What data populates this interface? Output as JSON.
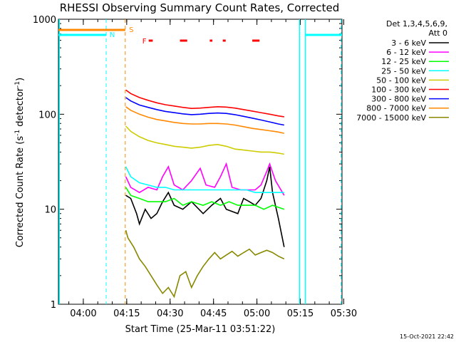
{
  "chart_data": {
    "type": "line",
    "title": "RHESSI Observing Summary Count Rates, Corrected",
    "xlabel": "Start Time (25-Mar-11 03:51:22)",
    "ylabel_main": "Corrected Count Rate (s",
    "ylabel_sup1": "-1",
    "ylabel_mid": " detector",
    "ylabel_sup2": "-1",
    "ylabel_end": ")",
    "ylog": true,
    "ylim": [
      1,
      1000
    ],
    "xlim_min": [
      0,
      98
    ],
    "x_unit": "minutes since 03:51:22",
    "x_ticks": [
      {
        "label": "04:00",
        "min": 8.6
      },
      {
        "label": "04:15",
        "min": 23.6
      },
      {
        "label": "04:30",
        "min": 38.6
      },
      {
        "label": "04:45",
        "min": 53.6
      },
      {
        "label": "05:00",
        "min": 68.6
      },
      {
        "label": "05:15",
        "min": 83.6
      },
      {
        "label": "05:30",
        "min": 98.6
      }
    ],
    "y_ticks": [
      {
        "label": "1",
        "v": 1
      },
      {
        "label": "10",
        "v": 10
      },
      {
        "label": "100",
        "v": 100
      },
      {
        "label": "1000",
        "v": 1000
      }
    ],
    "legend_header": [
      "Det 1,3,4,5,6,9,",
      "Att 0"
    ],
    "legend_position": "top-right",
    "series": [
      {
        "name": "3 - 6 keV",
        "color": "#000000",
        "values": [
          [
            23.3,
            14
          ],
          [
            25,
            13
          ],
          [
            27,
            9
          ],
          [
            28,
            7
          ],
          [
            30,
            10
          ],
          [
            32,
            8
          ],
          [
            34,
            9
          ],
          [
            36,
            12
          ],
          [
            38,
            15
          ],
          [
            40,
            11
          ],
          [
            43,
            10
          ],
          [
            46,
            12
          ],
          [
            50,
            9
          ],
          [
            53,
            11
          ],
          [
            56,
            13
          ],
          [
            58,
            10
          ],
          [
            62,
            9
          ],
          [
            64,
            13
          ],
          [
            66,
            12
          ],
          [
            68,
            11
          ],
          [
            70,
            13
          ],
          [
            72,
            20
          ],
          [
            73,
            28
          ],
          [
            74,
            15
          ],
          [
            76,
            8
          ],
          [
            78,
            4
          ]
        ]
      },
      {
        "name": "6 - 12 keV",
        "color": "#ff00ff",
        "values": [
          [
            23.3,
            22
          ],
          [
            25,
            17
          ],
          [
            28,
            15
          ],
          [
            31,
            17
          ],
          [
            34,
            16
          ],
          [
            36,
            22
          ],
          [
            38,
            28
          ],
          [
            40,
            18
          ],
          [
            43,
            16
          ],
          [
            46,
            20
          ],
          [
            49,
            27
          ],
          [
            51,
            18
          ],
          [
            54,
            17
          ],
          [
            56,
            22
          ],
          [
            58,
            30
          ],
          [
            60,
            17
          ],
          [
            63,
            16
          ],
          [
            66,
            16
          ],
          [
            68,
            16
          ],
          [
            70,
            18
          ],
          [
            72,
            25
          ],
          [
            73,
            30
          ],
          [
            75,
            20
          ],
          [
            78,
            14
          ]
        ]
      },
      {
        "name": "12 - 25 keV",
        "color": "#00ff00",
        "values": [
          [
            23.3,
            17
          ],
          [
            25,
            14
          ],
          [
            28,
            13
          ],
          [
            31,
            12
          ],
          [
            34,
            12
          ],
          [
            37,
            12
          ],
          [
            40,
            13
          ],
          [
            43,
            11
          ],
          [
            46,
            12
          ],
          [
            50,
            11
          ],
          [
            53,
            12
          ],
          [
            56,
            11
          ],
          [
            59,
            12
          ],
          [
            62,
            11
          ],
          [
            65,
            11
          ],
          [
            68,
            11
          ],
          [
            71,
            10
          ],
          [
            74,
            11
          ],
          [
            78,
            10
          ]
        ]
      },
      {
        "name": "25 - 50 keV",
        "color": "#00ffff",
        "values": [
          [
            23.3,
            28
          ],
          [
            25,
            22
          ],
          [
            28,
            19
          ],
          [
            31,
            18
          ],
          [
            34,
            17
          ],
          [
            37,
            17
          ],
          [
            40,
            16
          ],
          [
            43,
            16
          ],
          [
            46,
            16
          ],
          [
            50,
            16
          ],
          [
            53,
            16
          ],
          [
            56,
            16
          ],
          [
            59,
            16
          ],
          [
            62,
            16
          ],
          [
            65,
            16
          ],
          [
            68,
            15
          ],
          [
            71,
            15
          ],
          [
            74,
            15
          ],
          [
            78,
            15
          ]
        ]
      },
      {
        "name": "50 - 100 keV",
        "color": "#cccc00",
        "values": [
          [
            23.3,
            75
          ],
          [
            25,
            66
          ],
          [
            28,
            58
          ],
          [
            31,
            53
          ],
          [
            34,
            50
          ],
          [
            37,
            48
          ],
          [
            40,
            46
          ],
          [
            43,
            45
          ],
          [
            46,
            44
          ],
          [
            49,
            45
          ],
          [
            52,
            47
          ],
          [
            55,
            48
          ],
          [
            58,
            46
          ],
          [
            61,
            43
          ],
          [
            64,
            42
          ],
          [
            67,
            41
          ],
          [
            70,
            40
          ],
          [
            73,
            40
          ],
          [
            76,
            39
          ],
          [
            78,
            38
          ]
        ]
      },
      {
        "name": "100 - 300 keV",
        "color": "#ff0000",
        "values": [
          [
            23.3,
            180
          ],
          [
            25,
            165
          ],
          [
            28,
            150
          ],
          [
            31,
            140
          ],
          [
            34,
            132
          ],
          [
            37,
            126
          ],
          [
            40,
            122
          ],
          [
            43,
            118
          ],
          [
            46,
            115
          ],
          [
            49,
            116
          ],
          [
            52,
            118
          ],
          [
            55,
            120
          ],
          [
            58,
            119
          ],
          [
            61,
            116
          ],
          [
            64,
            112
          ],
          [
            67,
            108
          ],
          [
            70,
            104
          ],
          [
            73,
            100
          ],
          [
            76,
            96
          ],
          [
            78,
            94
          ]
        ]
      },
      {
        "name": "300 - 800 keV",
        "color": "#0000ff",
        "values": [
          [
            23.3,
            150
          ],
          [
            25,
            138
          ],
          [
            28,
            125
          ],
          [
            31,
            118
          ],
          [
            34,
            112
          ],
          [
            37,
            107
          ],
          [
            40,
            104
          ],
          [
            43,
            101
          ],
          [
            46,
            99
          ],
          [
            49,
            100
          ],
          [
            52,
            102
          ],
          [
            55,
            103
          ],
          [
            58,
            102
          ],
          [
            61,
            99
          ],
          [
            64,
            95
          ],
          [
            67,
            91
          ],
          [
            70,
            87
          ],
          [
            73,
            83
          ],
          [
            76,
            79
          ],
          [
            78,
            77
          ]
        ]
      },
      {
        "name": "800 - 7000 keV",
        "color": "#ff8800",
        "values": [
          [
            23.3,
            120
          ],
          [
            25,
            110
          ],
          [
            28,
            100
          ],
          [
            31,
            93
          ],
          [
            34,
            88
          ],
          [
            37,
            85
          ],
          [
            40,
            82
          ],
          [
            43,
            80
          ],
          [
            46,
            79
          ],
          [
            49,
            79
          ],
          [
            52,
            80
          ],
          [
            55,
            80
          ],
          [
            58,
            79
          ],
          [
            61,
            77
          ],
          [
            64,
            74
          ],
          [
            67,
            71
          ],
          [
            70,
            69
          ],
          [
            73,
            67
          ],
          [
            76,
            65
          ],
          [
            78,
            63
          ]
        ]
      },
      {
        "name": "7000 - 15000 keV",
        "color": "#888800",
        "values": [
          [
            23.3,
            6
          ],
          [
            24,
            5
          ],
          [
            26,
            4
          ],
          [
            28,
            3
          ],
          [
            30,
            2.5
          ],
          [
            32,
            2
          ],
          [
            34,
            1.6
          ],
          [
            36,
            1.3
          ],
          [
            38,
            1.5
          ],
          [
            40,
            1.2
          ],
          [
            42,
            2
          ],
          [
            44,
            2.2
          ],
          [
            46,
            1.5
          ],
          [
            48,
            2
          ],
          [
            50,
            2.5
          ],
          [
            52,
            3
          ],
          [
            54,
            3.5
          ],
          [
            56,
            3
          ],
          [
            58,
            3.3
          ],
          [
            60,
            3.6
          ],
          [
            62,
            3.2
          ],
          [
            64,
            3.5
          ],
          [
            66,
            3.8
          ],
          [
            68,
            3.3
          ],
          [
            70,
            3.5
          ],
          [
            72,
            3.7
          ],
          [
            74,
            3.5
          ],
          [
            76,
            3.2
          ],
          [
            78,
            3
          ]
        ]
      }
    ],
    "annotations": [
      {
        "text": "N",
        "color": "#00ffff"
      },
      {
        "text": "S",
        "color": "#ff8800"
      },
      {
        "text": "F",
        "color": "#ff0000"
      }
    ],
    "footer_date": "15-Oct-2021 22:42"
  }
}
